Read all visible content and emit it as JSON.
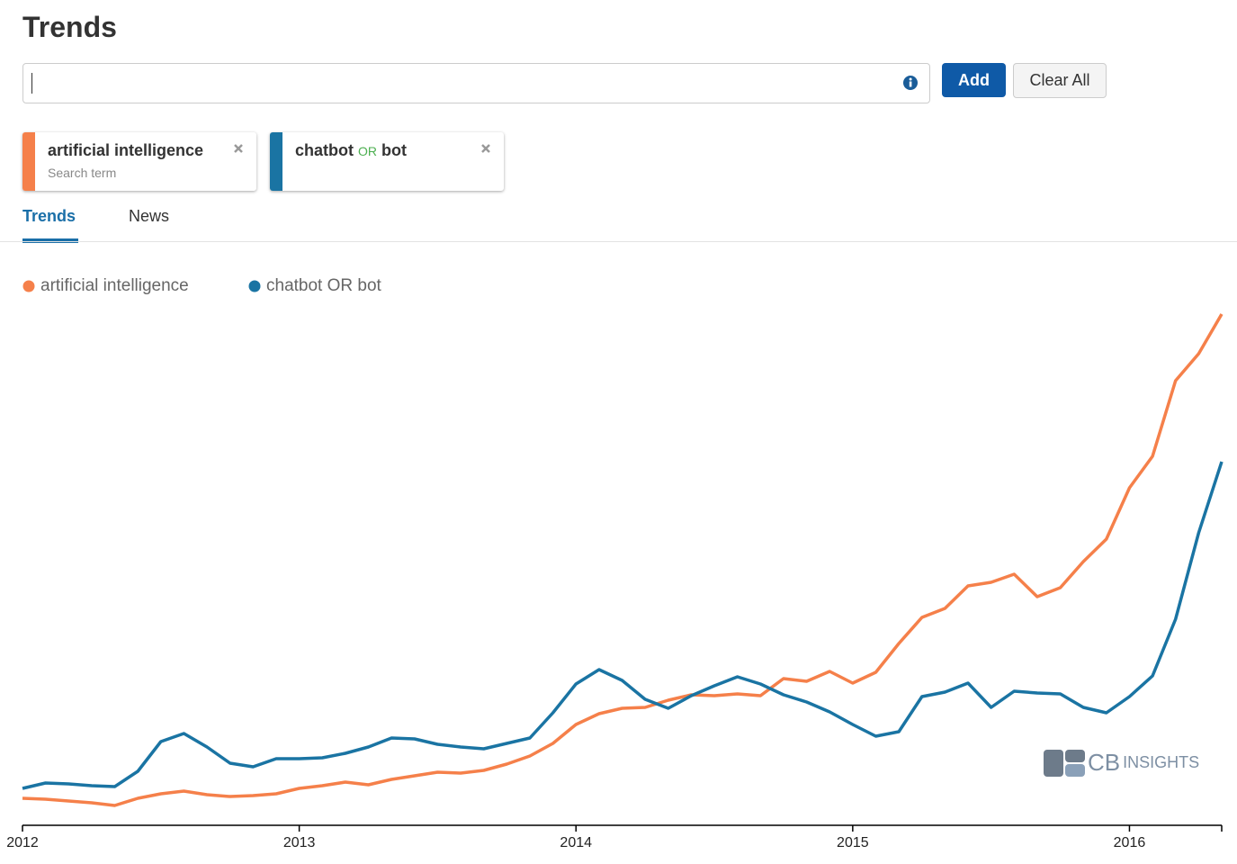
{
  "header": {
    "title": "Trends"
  },
  "search": {
    "add_button": "Add",
    "clear_button": "Clear All"
  },
  "chips": [
    {
      "label": "artificial intelligence",
      "sublabel": "Search term",
      "color": "#f5804a"
    },
    {
      "label_parts": [
        "chatbot",
        "OR",
        "bot"
      ],
      "color": "#1a74a3"
    }
  ],
  "tabs": {
    "items": [
      "Trends",
      "News"
    ],
    "active": 0
  },
  "watermark": {
    "brand": "CB",
    "suffix": "INSIGHTS"
  },
  "chart_data": {
    "type": "line",
    "categories": [
      "2012",
      null,
      null,
      null,
      null,
      null,
      null,
      null,
      null,
      null,
      null,
      null,
      "2013",
      null,
      null,
      null,
      null,
      null,
      null,
      null,
      null,
      null,
      null,
      null,
      "2014",
      null,
      null,
      null,
      null,
      null,
      null,
      null,
      null,
      null,
      null,
      null,
      "2015",
      null,
      null,
      null,
      null,
      null,
      null,
      null,
      null,
      null,
      null,
      null,
      "2016",
      null,
      null,
      null,
      null
    ],
    "series": [
      {
        "name": "artificial intelligence",
        "color": "#f5804a",
        "values": [
          30,
          29,
          27,
          25,
          22,
          30,
          35,
          38,
          34,
          32,
          33,
          35,
          41,
          44,
          48,
          45,
          51,
          55,
          59,
          58,
          61,
          68,
          77,
          91,
          112,
          124,
          130,
          131,
          139,
          145,
          144,
          146,
          144,
          163,
          160,
          171,
          158,
          170,
          202,
          231,
          241,
          266,
          270,
          279,
          254,
          264,
          293,
          318,
          375,
          410,
          494,
          524,
          568
        ]
      },
      {
        "name": "chatbot OR bot",
        "color": "#1a74a3",
        "values": [
          41,
          47,
          46,
          44,
          43,
          60,
          93,
          102,
          87,
          69,
          65,
          74,
          74,
          75,
          80,
          87,
          97,
          96,
          90,
          87,
          85,
          91,
          97,
          125,
          157,
          173,
          161,
          140,
          130,
          144,
          155,
          165,
          157,
          145,
          137,
          126,
          112,
          99,
          104,
          143,
          148,
          158,
          131,
          149,
          147,
          146,
          131,
          125,
          143,
          166,
          229,
          325,
          404
        ]
      }
    ],
    "ylim": [
      0,
      580
    ],
    "legend": "top-left",
    "grid": false
  }
}
